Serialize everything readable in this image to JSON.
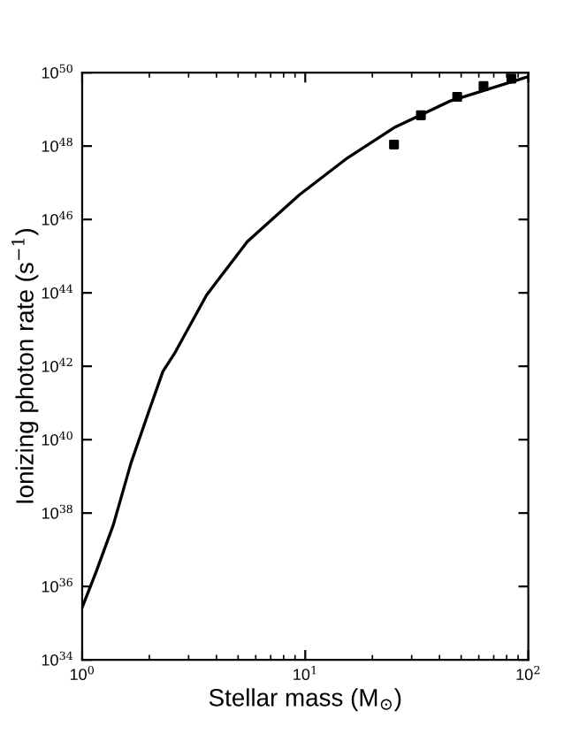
{
  "chart_data": {
    "type": "line",
    "xlabel": "Stellar mass (M$_{⊙}$)",
    "ylabel": "Ionizing photon rate (s$^{−1}$)",
    "log": "xy",
    "xlim": [
      1,
      100
    ],
    "ylim": [
      1e+34,
      1e+50
    ],
    "xticks": [
      {
        "value": 1,
        "label": "10$^{0}$"
      },
      {
        "value": 10,
        "label": "10$^{1}$"
      },
      {
        "value": 100,
        "label": "10$^{2}$"
      }
    ],
    "yticks": [
      {
        "value": 1e+34,
        "label": "10$^{34}$"
      },
      {
        "value": 1e+36,
        "label": "10$^{36}$"
      },
      {
        "value": 1e+38,
        "label": "10$^{38}$"
      },
      {
        "value": 1e+40,
        "label": "10$^{40}$"
      },
      {
        "value": 1e+42,
        "label": "10$^{42}$"
      },
      {
        "value": 1e+44,
        "label": "10$^{44}$"
      },
      {
        "value": 1e+46,
        "label": "10$^{46}$"
      },
      {
        "value": 1e+48,
        "label": "10$^{48}$"
      },
      {
        "value": 1e+50,
        "label": "10$^{50}$"
      }
    ],
    "grid": false,
    "series": [
      {
        "color": "#000000",
        "marker": "none",
        "line_style": "solid",
        "x": [
          1,
          1.155,
          1.38,
          1.655,
          1.98,
          2.3,
          2.59,
          3.61,
          5.5,
          9.42,
          15.2,
          25.3,
          44.8,
          100
        ],
        "values": [
          2.7e+35,
          2.5e+36,
          4.8e+37,
          2.3e+39,
          5.4e+40,
          7.2e+41,
          2.2e+42,
          8.7e+43,
          2.5e+45,
          4.7e+46,
          4.4e+47,
          3.3e+48,
          1.7e+49,
          7.8e+49
        ]
      },
      {
        "type": "scatter",
        "color": "#000000",
        "marker": "square",
        "x": [
          25,
          33,
          48,
          63,
          84
        ],
        "values": [
          1.1e+48,
          6.9e+48,
          2.2e+49,
          4.3e+49,
          6.9e+49
        ]
      }
    ]
  }
}
